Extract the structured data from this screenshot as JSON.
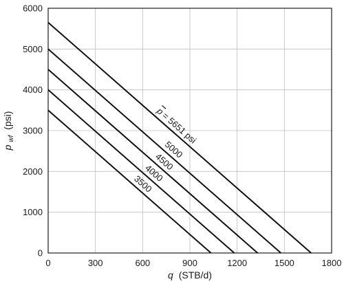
{
  "chart_data": {
    "type": "line",
    "title": "",
    "xlabel": {
      "symbol": "q",
      "unit": "(STB/d)"
    },
    "ylabel": {
      "symbol": "p",
      "subscript": "wf",
      "unit": "(psi)"
    },
    "xlim": [
      0,
      1800
    ],
    "ylim": [
      0,
      6000
    ],
    "xticks": [
      0,
      300,
      600,
      900,
      1200,
      1500,
      1800
    ],
    "yticks": [
      0,
      1000,
      2000,
      3000,
      4000,
      5000,
      6000
    ],
    "grid": true,
    "series": [
      {
        "name": "p̄ = 5651 psi",
        "label_text": "= 5651 psi",
        "label_symbol": "p",
        "x": [
          0,
          1670
        ],
        "y": [
          5651,
          0
        ],
        "label_at_x": 670
      },
      {
        "name": "5000",
        "label_text": "5000",
        "x": [
          0,
          1478
        ],
        "y": [
          5000,
          0
        ],
        "label_at_x": 720
      },
      {
        "name": "4500",
        "label_text": "4500",
        "x": [
          0,
          1330
        ],
        "y": [
          4500,
          0
        ],
        "label_at_x": 660
      },
      {
        "name": "4000",
        "label_text": "4000",
        "x": [
          0,
          1182
        ],
        "y": [
          4000,
          0
        ],
        "label_at_x": 595
      },
      {
        "name": "3500",
        "label_text": "3500",
        "x": [
          0,
          1034
        ],
        "y": [
          3500,
          0
        ],
        "label_at_x": 525
      }
    ]
  }
}
